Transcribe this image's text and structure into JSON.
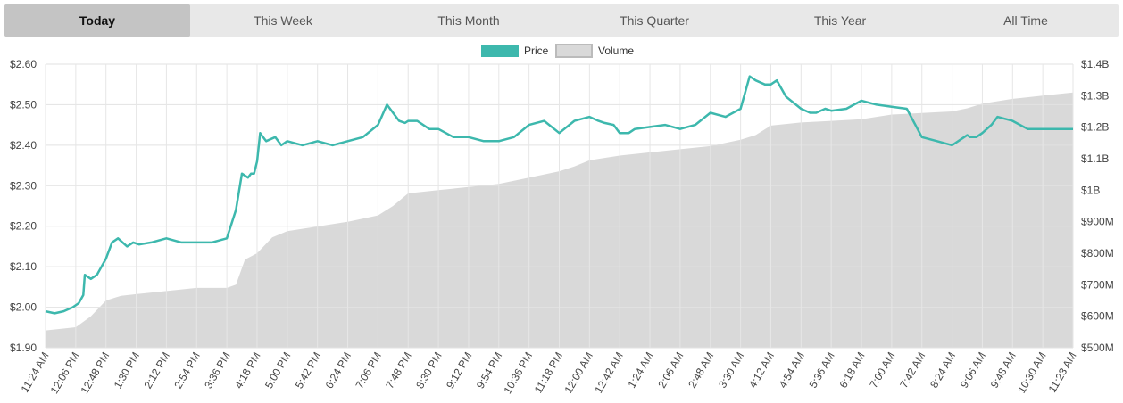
{
  "tabs": [
    {
      "label": "Today",
      "active": true
    },
    {
      "label": "This Week",
      "active": false
    },
    {
      "label": "This Month",
      "active": false
    },
    {
      "label": "This Quarter",
      "active": false
    },
    {
      "label": "This Year",
      "active": false
    },
    {
      "label": "All Time",
      "active": false
    }
  ],
  "chart_data": {
    "type": "line",
    "legend": [
      {
        "name": "Price",
        "color": "#3db8ad"
      },
      {
        "name": "Volume",
        "color": "#d9d9d9"
      }
    ],
    "legend_position": "top-center",
    "grid": true,
    "x_ticks": [
      "11:24 AM",
      "12:06 PM",
      "12:48 PM",
      "1:30 PM",
      "2:12 PM",
      "2:54 PM",
      "3:36 PM",
      "4:18 PM",
      "5:00 PM",
      "5:42 PM",
      "6:24 PM",
      "7:06 PM",
      "7:48 PM",
      "8:30 PM",
      "9:12 PM",
      "9:54 PM",
      "10:36 PM",
      "11:18 PM",
      "12:00 AM",
      "12:42 AM",
      "1:24 AM",
      "2:06 AM",
      "2:48 AM",
      "3:30 AM",
      "4:12 AM",
      "4:54 AM",
      "5:36 AM",
      "6:18 AM",
      "7:00 AM",
      "7:42 AM",
      "8:24 AM",
      "9:06 AM",
      "9:48 AM",
      "10:30 AM",
      "11:23 AM"
    ],
    "y_left": {
      "min": 1.9,
      "max": 2.6,
      "ticks": [
        "$1.90",
        "$2.00",
        "$2.10",
        "$2.20",
        "$2.30",
        "$2.40",
        "$2.50",
        "$2.60"
      ]
    },
    "y_right": {
      "min": 500,
      "max": 1400,
      "unit": "M",
      "ticks": [
        "$500M",
        "$600M",
        "$700M",
        "$800M",
        "$900M",
        "$1B",
        "$1.1B",
        "$1.2B",
        "$1.3B",
        "$1.4B"
      ]
    },
    "series": [
      {
        "name": "Price",
        "axis": "left",
        "color": "#3db8ad",
        "x": [
          0,
          0.3,
          0.6,
          0.9,
          1.1,
          1.25,
          1.3,
          1.5,
          1.7,
          2.0,
          2.2,
          2.4,
          2.7,
          2.9,
          3.1,
          3.5,
          4.0,
          4.5,
          5.0,
          5.5,
          6.0,
          6.3,
          6.5,
          6.7,
          6.8,
          6.9,
          7.0,
          7.1,
          7.2,
          7.3,
          7.6,
          7.8,
          8.0,
          8.5,
          9.0,
          9.5,
          10.0,
          10.5,
          11.0,
          11.3,
          11.6,
          11.7,
          11.9,
          12.0,
          12.3,
          12.7,
          13.0,
          13.5,
          14.0,
          14.5,
          15.0,
          15.5,
          16.0,
          16.5,
          17.0,
          17.5,
          18.0,
          18.3,
          18.5,
          18.8,
          19.0,
          19.3,
          19.5,
          20.0,
          20.5,
          21.0,
          21.5,
          22.0,
          22.5,
          23.0,
          23.3,
          23.5,
          23.8,
          24.0,
          24.2,
          24.5,
          25.0,
          25.3,
          25.5,
          25.8,
          26.0,
          26.5,
          27.0,
          27.5,
          28.0,
          28.5,
          29.0,
          29.5,
          30.0,
          30.4,
          30.5,
          30.6,
          30.8,
          31.0,
          31.3,
          31.5,
          32.0,
          32.5,
          33.0,
          33.3,
          33.5,
          34.0
        ],
        "values": [
          1.99,
          1.985,
          1.99,
          2.0,
          2.01,
          2.03,
          2.08,
          2.07,
          2.08,
          2.12,
          2.16,
          2.17,
          2.15,
          2.16,
          2.155,
          2.16,
          2.17,
          2.16,
          2.16,
          2.16,
          2.17,
          2.24,
          2.33,
          2.32,
          2.33,
          2.33,
          2.36,
          2.43,
          2.42,
          2.41,
          2.42,
          2.4,
          2.41,
          2.4,
          2.41,
          2.4,
          2.41,
          2.42,
          2.45,
          2.5,
          2.47,
          2.46,
          2.455,
          2.46,
          2.46,
          2.44,
          2.44,
          2.42,
          2.42,
          2.41,
          2.41,
          2.42,
          2.45,
          2.46,
          2.43,
          2.46,
          2.47,
          2.46,
          2.455,
          2.45,
          2.43,
          2.43,
          2.44,
          2.445,
          2.45,
          2.44,
          2.45,
          2.48,
          2.47,
          2.49,
          2.57,
          2.56,
          2.55,
          2.55,
          2.56,
          2.52,
          2.49,
          2.48,
          2.48,
          2.49,
          2.485,
          2.49,
          2.51,
          2.5,
          2.495,
          2.49,
          2.42,
          2.41,
          2.4,
          2.42,
          2.425,
          2.42,
          2.42,
          2.43,
          2.45,
          2.47,
          2.46,
          2.44,
          2.44,
          2.44,
          2.44,
          2.44
        ]
      },
      {
        "name": "Volume",
        "axis": "right",
        "color": "#d9d9d9",
        "x": [
          0,
          1.0,
          1.5,
          2.0,
          2.5,
          3.0,
          4.0,
          5.0,
          6.0,
          6.3,
          6.6,
          7.0,
          7.5,
          8.0,
          9.0,
          10.0,
          11.0,
          11.5,
          12.0,
          13.0,
          14.0,
          15.0,
          16.0,
          17.0,
          17.5,
          18.0,
          19.0,
          20.0,
          21.0,
          22.0,
          23.0,
          23.5,
          24.0,
          25.0,
          26.0,
          27.0,
          28.0,
          29.0,
          30.0,
          30.5,
          31.0,
          32.0,
          33.0,
          34.0
        ],
        "values": [
          555,
          565,
          600,
          650,
          665,
          670,
          680,
          690,
          690,
          700,
          780,
          800,
          850,
          870,
          885,
          900,
          920,
          950,
          990,
          1000,
          1010,
          1020,
          1040,
          1060,
          1075,
          1095,
          1110,
          1120,
          1130,
          1140,
          1160,
          1175,
          1205,
          1215,
          1220,
          1225,
          1240,
          1245,
          1250,
          1260,
          1275,
          1290,
          1300,
          1310
        ]
      }
    ]
  }
}
